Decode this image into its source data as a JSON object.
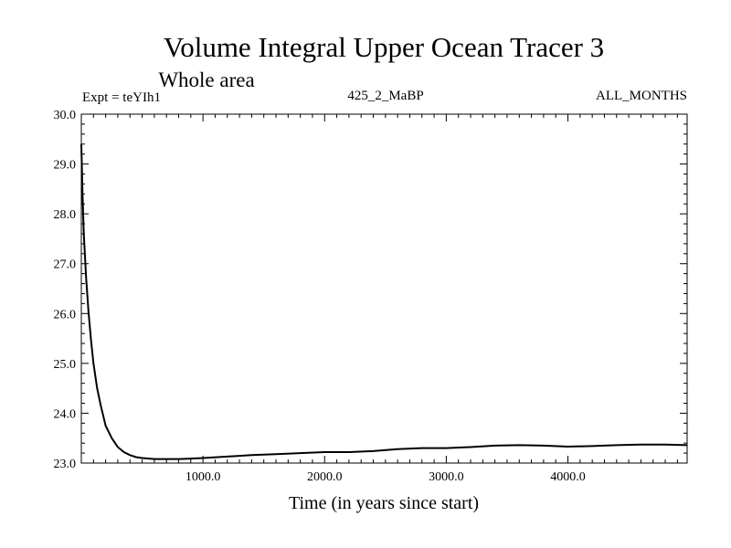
{
  "header": {
    "title": "Volume Integral Upper Ocean Tracer 3",
    "subtitle": "Whole area",
    "expt": "Expt = teYIh1",
    "run": "425_2_MaBP",
    "months": "ALL_MONTHS"
  },
  "chart_data": {
    "type": "line",
    "title": "Volume Integral Upper Ocean Tracer 3",
    "subtitle": "Whole area",
    "xlabel": "Time (in years since start)",
    "ylabel": "",
    "xlim": [
      0,
      4980
    ],
    "ylim": [
      23.0,
      30.0
    ],
    "xticks": [
      "1000.0",
      "2000.0",
      "3000.0",
      "4000.0"
    ],
    "yticks": [
      "23.0",
      "24.0",
      "25.0",
      "26.0",
      "27.0",
      "28.0",
      "29.0",
      "30.0"
    ],
    "grid": false,
    "series": [
      {
        "x": [
          0,
          10,
          20,
          40,
          60,
          80,
          100,
          130,
          160,
          200,
          250,
          300,
          350,
          400,
          450,
          500,
          600,
          700,
          800,
          900,
          1000,
          1200,
          1400,
          1600,
          1800,
          2000,
          2200,
          2400,
          2600,
          2800,
          3000,
          3200,
          3400,
          3600,
          3800,
          4000,
          4200,
          4400,
          4600,
          4800,
          4980
        ],
        "y": [
          29.4,
          28.4,
          27.6,
          26.7,
          26.0,
          25.45,
          25.0,
          24.5,
          24.15,
          23.75,
          23.5,
          23.32,
          23.22,
          23.16,
          23.12,
          23.1,
          23.08,
          23.08,
          23.08,
          23.09,
          23.1,
          23.13,
          23.16,
          23.18,
          23.2,
          23.22,
          23.22,
          23.24,
          23.28,
          23.3,
          23.3,
          23.32,
          23.35,
          23.36,
          23.35,
          23.33,
          23.34,
          23.36,
          23.37,
          23.37,
          23.36
        ]
      }
    ]
  }
}
